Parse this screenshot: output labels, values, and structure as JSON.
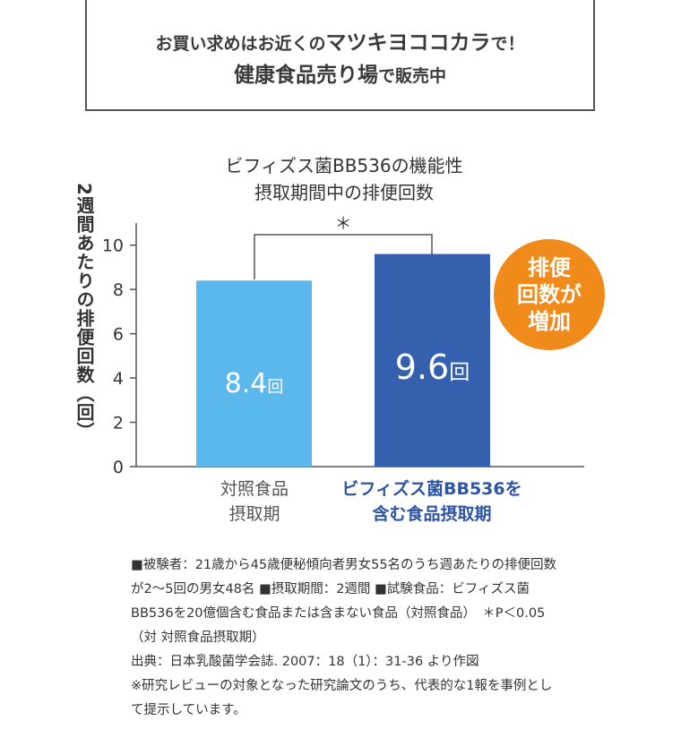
{
  "banner": {
    "line1_pre": "お買い求めはお近くの",
    "line1_brand": "マツキヨココカラ",
    "line1_post": "で！",
    "line2_main": "健康食品売り場",
    "line2_post": "で販売中"
  },
  "badge": {
    "line1": "排便",
    "line2": "回数が",
    "line3": "増加"
  },
  "chart_data": {
    "type": "bar",
    "title_lines": [
      "ビフィズス菌BB536の機能性",
      "摂取期間中の排便回数"
    ],
    "ylabel": "2週間あたりの排便回数（回）",
    "xlabel": "",
    "ylim": [
      0,
      11
    ],
    "yticks": [
      "0",
      "2",
      "4",
      "6",
      "8",
      "10"
    ],
    "grid": false,
    "categories": [
      {
        "line1": "対照食品",
        "line2": "摂取期"
      },
      {
        "line1": "ビフィズス菌BB536を",
        "line2": "含む食品摂取期"
      }
    ],
    "values": [
      8.4,
      9.6
    ],
    "value_numbers": [
      "8.4",
      "9.6"
    ],
    "value_unit": "回",
    "colors": [
      "#5bb8ec",
      "#3460ae"
    ],
    "category_colors": [
      "#555555",
      "#2d55a3"
    ],
    "significance": "＊"
  },
  "notes": {
    "p1": "■被験者：21歳から45歳便秘傾向者男女55名のうち週あたりの排便回数が2～5回の男女48名 ■摂取期間：2週間 ■試験食品：ビフィズス菌BB536を20億個含む食品または含まない食品（対照食品）　＊P＜0.05（対 対照食品摂取期）",
    "p2": "出典：日本乳酸菌学会誌. 2007：18（1）：31-36 より作図",
    "p3": "※研究レビューの対象となった研究論文のうち、代表的な1報を事例として提示しています。"
  }
}
